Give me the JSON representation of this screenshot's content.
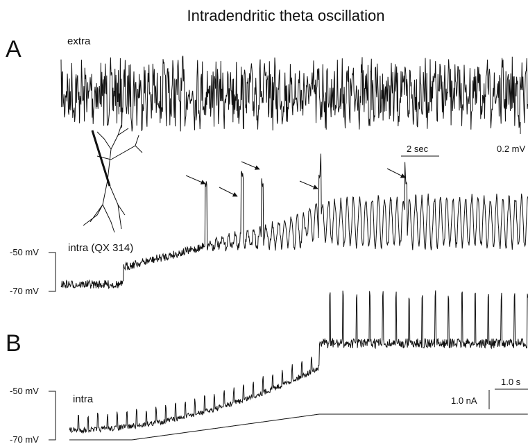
{
  "title": "Intradendritic theta oscillation",
  "panel_a": {
    "label": "A",
    "extra_label": "extra",
    "time_scale": "2 sec",
    "voltage_scale": "0.2 mV",
    "intra_label": "intra (QX 314)",
    "upper_level": "-50 mV",
    "lower_level": "-70 mV"
  },
  "panel_b": {
    "label": "B",
    "intra_label": "intra",
    "upper_level": "-50 mV",
    "lower_level": "-70 mV",
    "time_scale": "1.0 s",
    "current_scale": "1.0 nA"
  }
}
